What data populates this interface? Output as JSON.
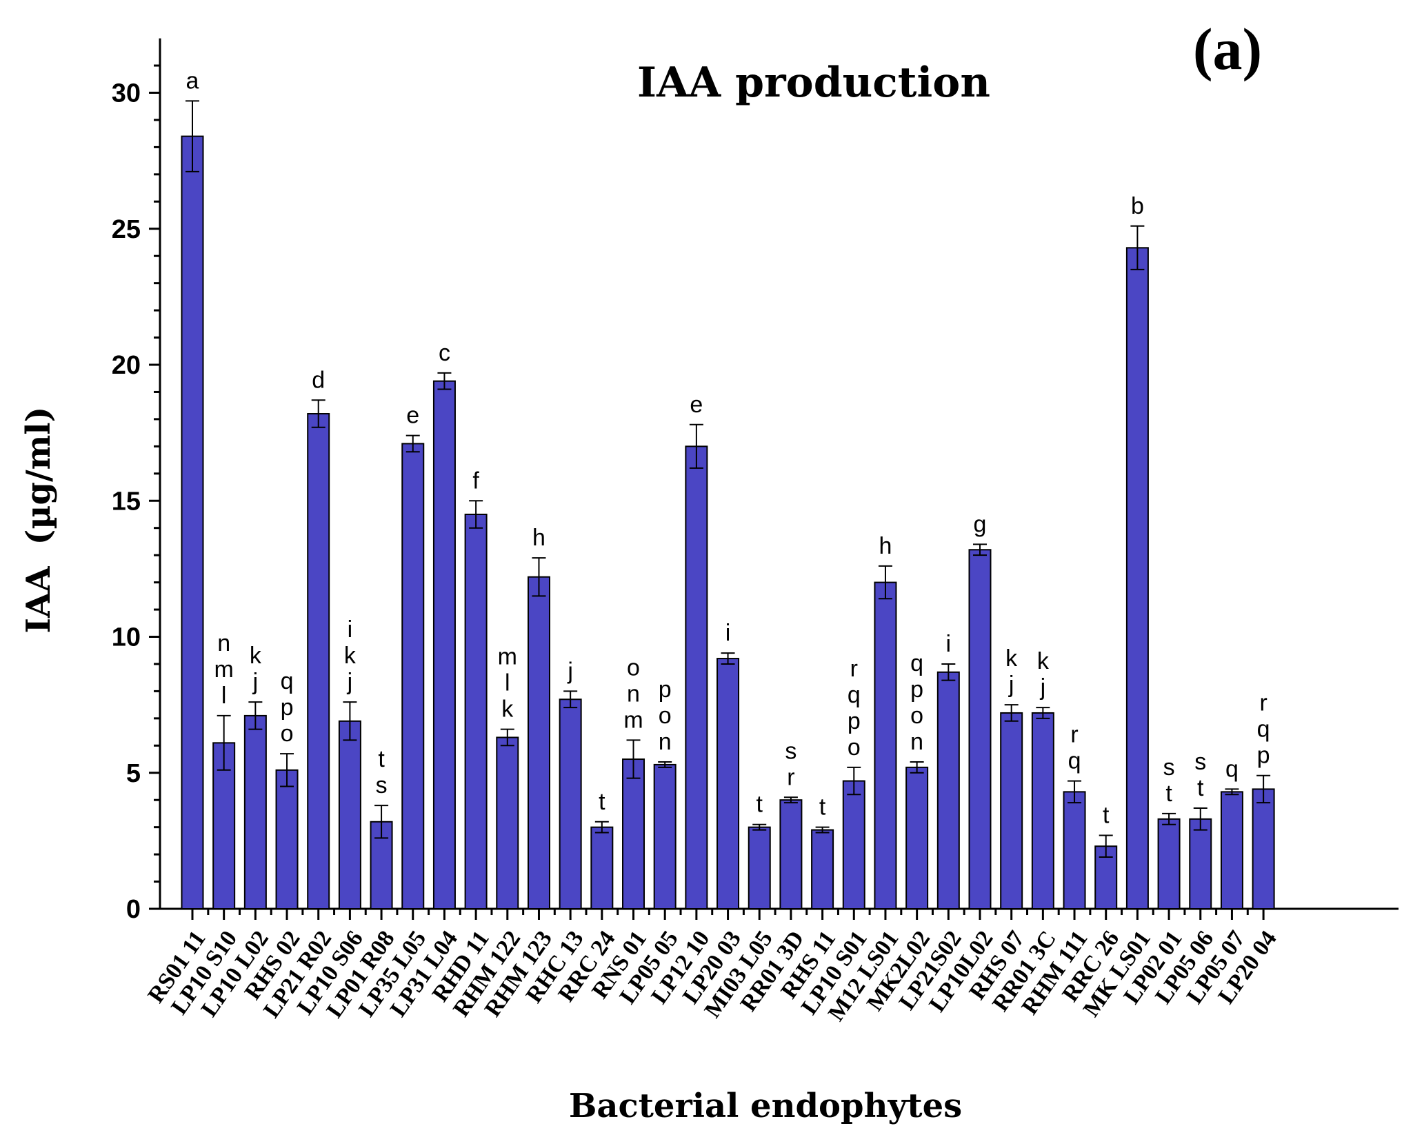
{
  "chart_data": {
    "type": "bar",
    "title": "IAA production",
    "panel_label": "(a)",
    "xlabel": "Bacterial endophytes",
    "ylabel_main": "IAA",
    "ylabel_unit": "(µg/ml)",
    "ylim": [
      0,
      32
    ],
    "yticks": [
      "0",
      "5",
      "10",
      "15",
      "20",
      "25",
      "30"
    ],
    "grid": false,
    "bar_color": "#4b46c4",
    "categories": [
      "RS01 11",
      "LP10 S10",
      "LP10 L02",
      "RHS 02",
      "LP21 R02",
      "LP10 S06",
      "LP01 R08",
      "LP35 L05",
      "LP31 L04",
      "RHD 11",
      "RHM 122",
      "RHM 123",
      "RHC 13",
      "RRC 24",
      "RNS 01",
      "LP05 05",
      "LP12 10",
      "LP20 03",
      "MI03 L05",
      "RR01 3D",
      "RHS 11",
      "LP10 S01",
      "M12 LS01",
      "MK2L02",
      "LP21S02",
      "LP10L02",
      "RHS 07",
      "RR01 3C",
      "RHM 111",
      "RRC 26",
      "MK LS01",
      "LP02 01",
      "LP05 06",
      "LP05 07",
      "LP20 04"
    ],
    "values": [
      28.4,
      6.1,
      7.1,
      5.1,
      18.2,
      6.9,
      3.2,
      17.1,
      19.4,
      14.5,
      6.3,
      12.2,
      7.7,
      3.0,
      5.5,
      5.3,
      17.0,
      9.2,
      3.0,
      4.0,
      2.9,
      4.7,
      12.0,
      5.2,
      8.7,
      13.2,
      7.2,
      7.2,
      4.3,
      2.3,
      24.3,
      3.3,
      3.3,
      4.3,
      4.4
    ],
    "errors": [
      1.3,
      1.0,
      0.5,
      0.6,
      0.5,
      0.7,
      0.6,
      0.3,
      0.3,
      0.5,
      0.3,
      0.7,
      0.3,
      0.2,
      0.7,
      0.1,
      0.8,
      0.2,
      0.1,
      0.1,
      0.1,
      0.5,
      0.6,
      0.2,
      0.3,
      0.2,
      0.3,
      0.2,
      0.4,
      0.4,
      0.8,
      0.2,
      0.4,
      0.1,
      0.5
    ],
    "significance_letters": [
      [
        "a"
      ],
      [
        "n",
        "m",
        "l"
      ],
      [
        "k",
        "j"
      ],
      [
        "q",
        "p",
        "o"
      ],
      [
        "d"
      ],
      [
        "i",
        "k",
        "j"
      ],
      [
        "t",
        "s"
      ],
      [
        "e"
      ],
      [
        "c"
      ],
      [
        "f"
      ],
      [
        "m",
        "l",
        "k"
      ],
      [
        "h"
      ],
      [
        "j"
      ],
      [
        "t"
      ],
      [
        "o",
        "n",
        "m"
      ],
      [
        "p",
        "o",
        "n"
      ],
      [
        "e"
      ],
      [
        "i"
      ],
      [
        "t"
      ],
      [
        "s",
        "r"
      ],
      [
        "t"
      ],
      [
        "r",
        "q",
        "p",
        "o"
      ],
      [
        "h"
      ],
      [
        "q",
        "p",
        "o",
        "n"
      ],
      [
        "i"
      ],
      [
        "g"
      ],
      [
        "k",
        "j"
      ],
      [
        "k",
        "j"
      ],
      [
        "r",
        "q"
      ],
      [
        "t"
      ],
      [
        "b"
      ],
      [
        "s",
        "t"
      ],
      [
        "s",
        "t"
      ],
      [
        "q"
      ],
      [
        "r",
        "q",
        "p"
      ]
    ]
  }
}
